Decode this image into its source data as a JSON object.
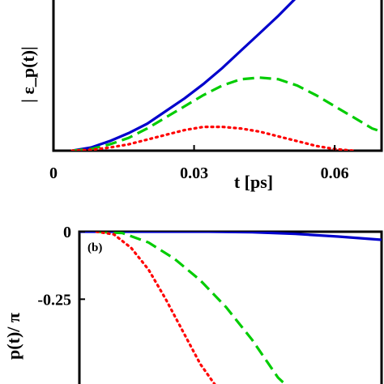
{
  "chart_data": [
    {
      "type": "line",
      "panel_label": "",
      "ylabel": "| ε_p(t)|",
      "xlabel": "t [ps]",
      "xlim": [
        0,
        0.07
      ],
      "ylim": [
        0,
        1
      ],
      "x_ticks": [
        0,
        0.03,
        0.06
      ],
      "x_tick_labels": [
        "0",
        "0.03",
        "0.06"
      ],
      "y_ticks": [],
      "grid": false,
      "series": [
        {
          "color": "#0000cc",
          "style": "solid",
          "x": [
            0.004,
            0.008,
            0.012,
            0.016,
            0.02,
            0.024,
            0.028,
            0.032,
            0.036,
            0.04,
            0.044,
            0.048,
            0.052,
            0.054
          ],
          "y": [
            0.0,
            0.02,
            0.06,
            0.11,
            0.17,
            0.25,
            0.33,
            0.42,
            0.52,
            0.63,
            0.74,
            0.85,
            0.97,
            1.0
          ]
        },
        {
          "color": "#00cc00",
          "style": "dashed",
          "x": [
            0.004,
            0.008,
            0.012,
            0.016,
            0.02,
            0.024,
            0.028,
            0.032,
            0.036,
            0.04,
            0.044,
            0.048,
            0.052,
            0.056,
            0.06,
            0.064,
            0.068,
            0.07
          ],
          "y": [
            0.0,
            0.01,
            0.04,
            0.08,
            0.14,
            0.21,
            0.28,
            0.35,
            0.41,
            0.45,
            0.46,
            0.45,
            0.41,
            0.35,
            0.28,
            0.21,
            0.14,
            0.12
          ]
        },
        {
          "color": "#ff0000",
          "style": "dotted",
          "x": [
            0.004,
            0.008,
            0.012,
            0.016,
            0.02,
            0.024,
            0.028,
            0.032,
            0.036,
            0.04,
            0.044,
            0.048,
            0.052,
            0.056,
            0.06,
            0.064
          ],
          "y": [
            0.0,
            0.005,
            0.02,
            0.04,
            0.07,
            0.1,
            0.13,
            0.15,
            0.15,
            0.14,
            0.12,
            0.09,
            0.06,
            0.03,
            0.01,
            0.0
          ]
        }
      ]
    },
    {
      "type": "line",
      "panel_label": "(b)",
      "ylabel": "p(t)/ π",
      "xlabel": "",
      "xlim": [
        0,
        0.07
      ],
      "ylim": [
        -0.6,
        0
      ],
      "y_ticks": [
        0,
        -0.25
      ],
      "y_tick_labels": [
        "0",
        "-0.25"
      ],
      "grid": false,
      "series": [
        {
          "color": "#0000cc",
          "style": "solid",
          "x": [
            0.0,
            0.01,
            0.02,
            0.03,
            0.04,
            0.05,
            0.06,
            0.07
          ],
          "y": [
            0.0,
            0.0,
            0.0,
            0.0,
            -0.002,
            -0.008,
            -0.018,
            -0.03
          ]
        },
        {
          "color": "#00cc00",
          "style": "dashed",
          "x": [
            0.004,
            0.01,
            0.016,
            0.022,
            0.028,
            0.034,
            0.04,
            0.046,
            0.05
          ],
          "y": [
            0.0,
            -0.005,
            -0.04,
            -0.1,
            -0.18,
            -0.28,
            -0.4,
            -0.54,
            -0.6
          ]
        },
        {
          "color": "#ff0000",
          "style": "dotted",
          "x": [
            0.004,
            0.008,
            0.012,
            0.016,
            0.02,
            0.024,
            0.028,
            0.032,
            0.034
          ],
          "y": [
            0.0,
            -0.01,
            -0.06,
            -0.14,
            -0.25,
            -0.37,
            -0.49,
            -0.58,
            -0.6
          ]
        }
      ]
    }
  ]
}
